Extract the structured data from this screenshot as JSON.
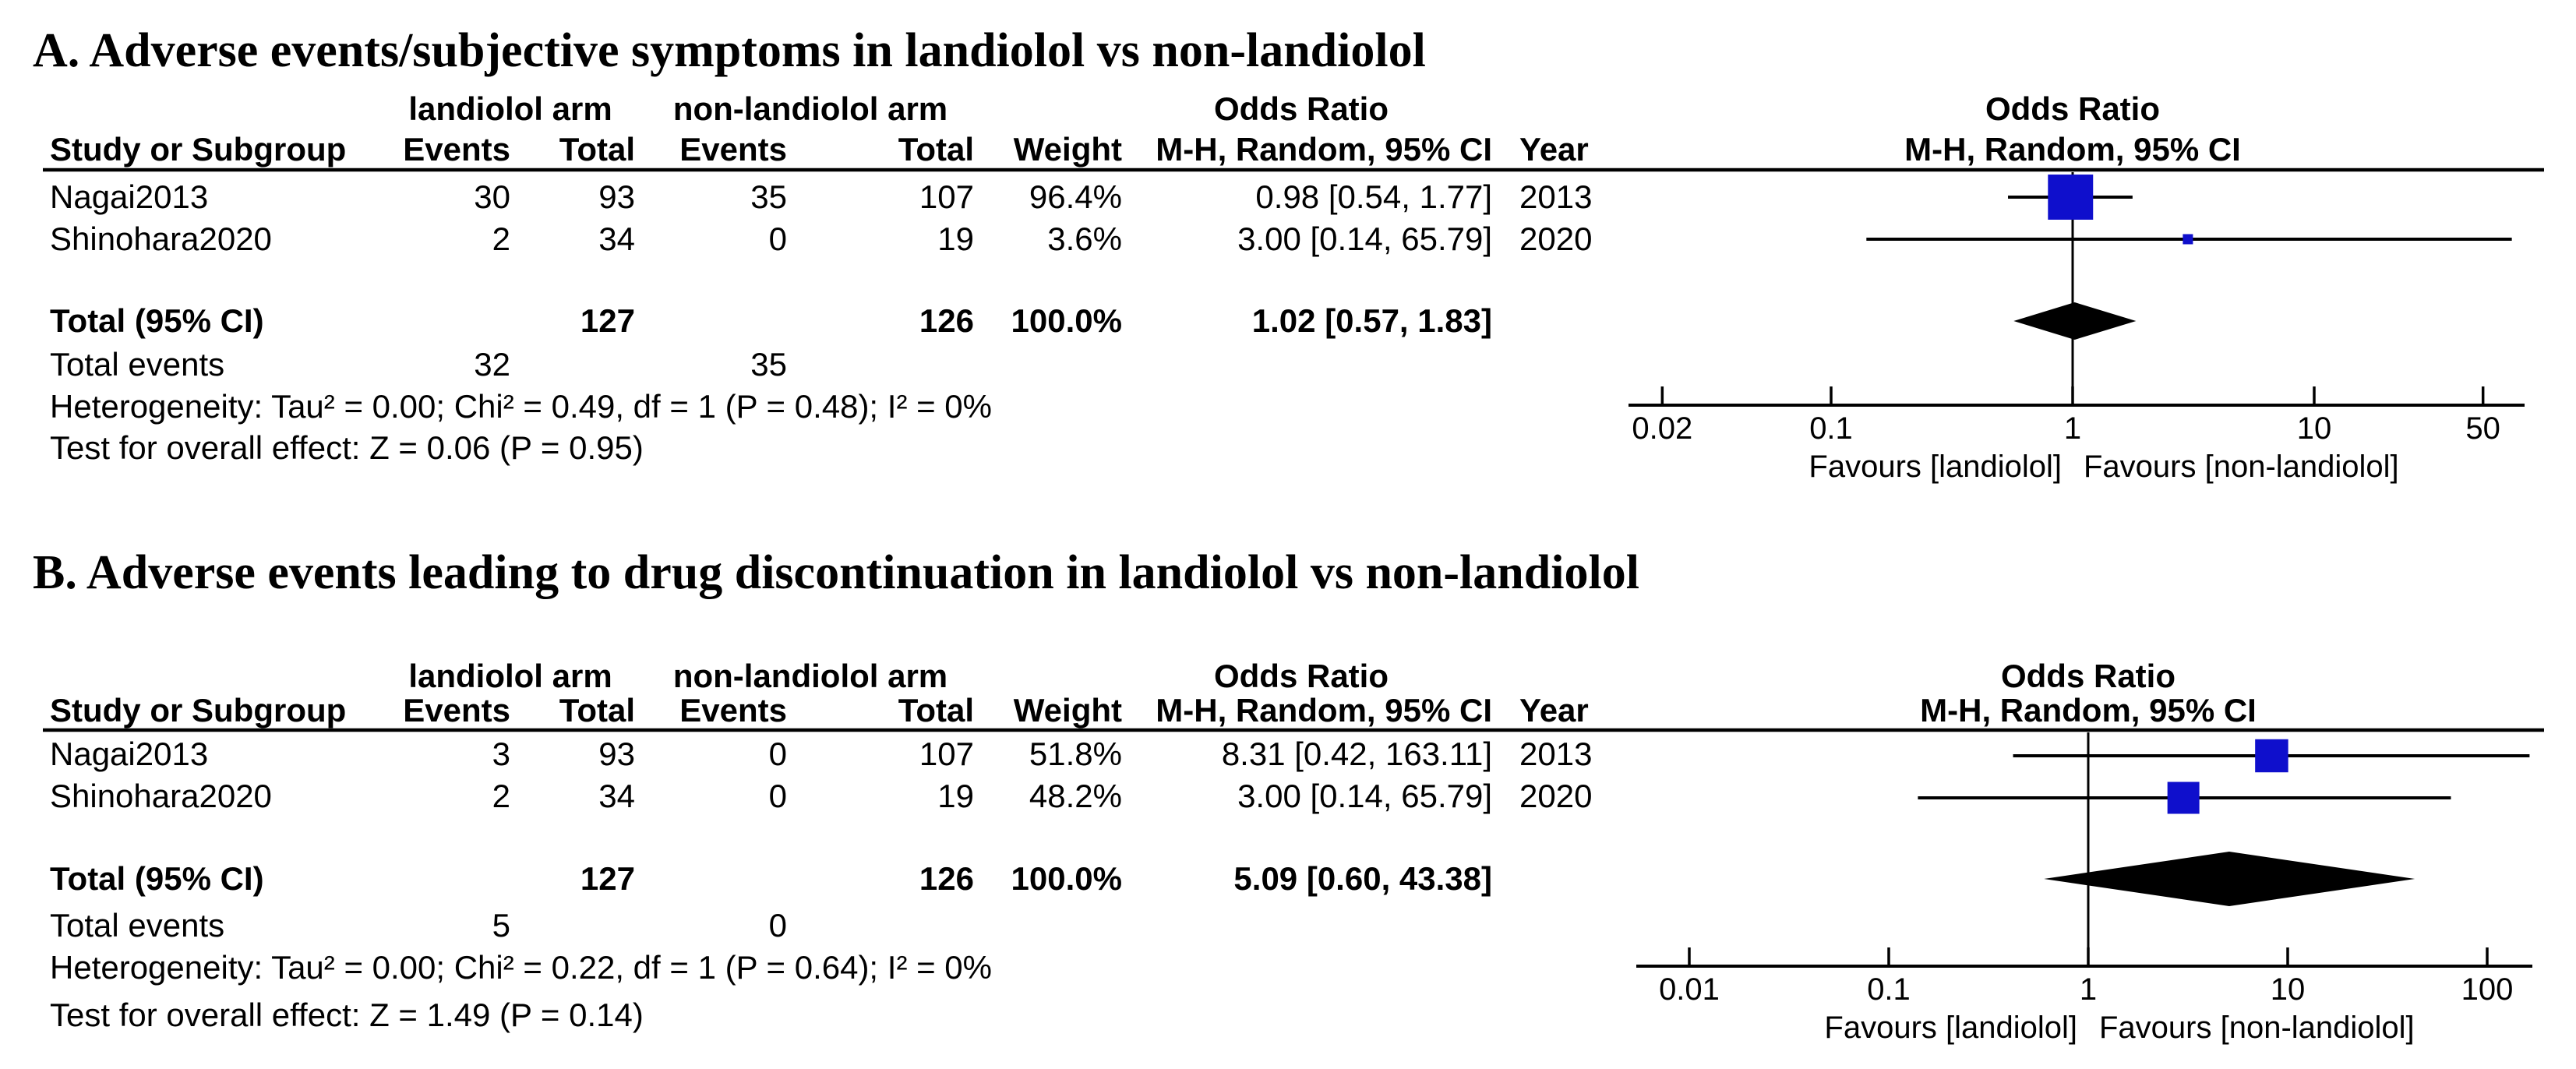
{
  "colors": {
    "square": "#0F0FCC",
    "diamond": "#000000",
    "text": "#000000",
    "background": "#FFFFFF"
  },
  "chart_data": [
    {
      "type": "forest",
      "panel": "A",
      "title": "A. Adverse events/subjective symptoms in landiolol vs non-landiolol",
      "effect_measure": "Odds Ratio",
      "method": "M-H, Random, 95% CI",
      "group_labels": [
        "landiolol arm",
        "non-landiolol arm"
      ],
      "column_headers": {
        "study": "Study or Subgroup",
        "events": "Events",
        "total": "Total",
        "weight": "Weight",
        "ci": "M-H, Random, 95% CI",
        "year": "Year",
        "odds_ratio": "Odds Ratio"
      },
      "studies": [
        {
          "study": "Nagai2013",
          "events1": "30",
          "total1": "93",
          "events2": "35",
          "total2": "107",
          "weight": "96.4%",
          "weight_value": 96.4,
          "or": 0.98,
          "ci_low": 0.54,
          "ci_high": 1.77,
          "ci_text": "0.98 [0.54, 1.77]",
          "year": "2013"
        },
        {
          "study": "Shinohara2020",
          "events1": "2",
          "total1": "34",
          "events2": "0",
          "total2": "19",
          "weight": "3.6%",
          "weight_value": 3.6,
          "or": 3.0,
          "ci_low": 0.14,
          "ci_high": 65.79,
          "ci_text": "3.00 [0.14, 65.79]",
          "year": "2020"
        }
      ],
      "total": {
        "label": "Total (95% CI)",
        "total1": "127",
        "total2": "126",
        "weight": "100.0%",
        "or": 1.02,
        "ci_low": 0.57,
        "ci_high": 1.83,
        "ci_text": "1.02 [0.57, 1.83]"
      },
      "total_events": {
        "label": "Total events",
        "events1": "32",
        "events2": "35"
      },
      "heterogeneity": "Heterogeneity: Tau² = 0.00; Chi² = 0.49, df = 1 (P = 0.48); I² = 0%",
      "overall_effect": "Test for overall effect: Z = 0.06 (P = 0.95)",
      "axis": {
        "scale": "log",
        "min": 0.02,
        "max": 50,
        "ticks": [
          0.02,
          0.1,
          1,
          10,
          50
        ]
      },
      "xlabel_left": "Favours [landiolol]",
      "xlabel_right": "Favours [non-landiolol]"
    },
    {
      "type": "forest",
      "panel": "B",
      "title": "B. Adverse events leading to drug discontinuation in landiolol vs non-landiolol",
      "effect_measure": "Odds Ratio",
      "method": "M-H, Random, 95% CI",
      "group_labels": [
        "landiolol arm",
        "non-landiolol arm"
      ],
      "column_headers": {
        "study": "Study or Subgroup",
        "events": "Events",
        "total": "Total",
        "weight": "Weight",
        "ci": "M-H, Random, 95% CI",
        "year": "Year",
        "odds_ratio": "Odds Ratio"
      },
      "studies": [
        {
          "study": "Nagai2013",
          "events1": "3",
          "total1": "93",
          "events2": "0",
          "total2": "107",
          "weight": "51.8%",
          "weight_value": 51.8,
          "or": 8.31,
          "ci_low": 0.42,
          "ci_high": 163.11,
          "ci_text": "8.31 [0.42, 163.11]",
          "year": "2013"
        },
        {
          "study": "Shinohara2020",
          "events1": "2",
          "total1": "34",
          "events2": "0",
          "total2": "19",
          "weight": "48.2%",
          "weight_value": 48.2,
          "or": 3.0,
          "ci_low": 0.14,
          "ci_high": 65.79,
          "ci_text": "3.00 [0.14, 65.79]",
          "year": "2020"
        }
      ],
      "total": {
        "label": "Total (95% CI)",
        "total1": "127",
        "total2": "126",
        "weight": "100.0%",
        "or": 5.09,
        "ci_low": 0.6,
        "ci_high": 43.38,
        "ci_text": "5.09 [0.60, 43.38]"
      },
      "total_events": {
        "label": "Total events",
        "events1": "5",
        "events2": "0"
      },
      "heterogeneity": "Heterogeneity: Tau² = 0.00; Chi² = 0.22, df = 1 (P = 0.64); I² = 0%",
      "overall_effect": "Test for overall effect: Z = 1.49 (P = 0.14)",
      "axis": {
        "scale": "log",
        "min": 0.01,
        "max": 100,
        "ticks": [
          0.01,
          0.1,
          1,
          10,
          100
        ]
      },
      "xlabel_left": "Favours [landiolol]",
      "xlabel_right": "Favours [non-landiolol]"
    }
  ]
}
